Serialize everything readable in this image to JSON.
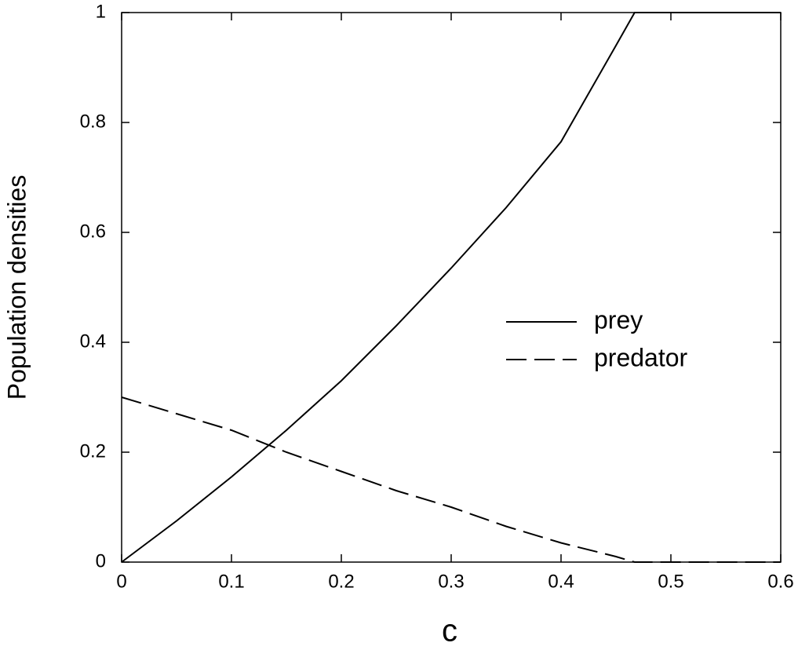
{
  "chart_data": {
    "type": "line",
    "xlabel": "c",
    "ylabel": "Population densities",
    "x": [
      0,
      0.05,
      0.1,
      0.15,
      0.2,
      0.25,
      0.3,
      0.35,
      0.4,
      0.45,
      0.467,
      0.5,
      0.55,
      0.6
    ],
    "series": [
      {
        "name": "prey",
        "color": "#000000",
        "dash": "solid",
        "values": [
          0,
          0.075,
          0.155,
          0.24,
          0.33,
          0.43,
          0.535,
          0.645,
          0.765,
          0.94,
          1,
          1,
          1,
          1
        ]
      },
      {
        "name": "predator",
        "color": "#000000",
        "dash": "dashed",
        "values": [
          0.3,
          0.27,
          0.24,
          0.2,
          0.165,
          0.13,
          0.1,
          0.065,
          0.035,
          0.01,
          0,
          0,
          0,
          0
        ]
      }
    ],
    "xlim": [
      0,
      0.6
    ],
    "xticks": [
      0,
      0.1,
      0.2,
      0.3,
      0.4,
      0.5,
      0.6
    ],
    "ylim": [
      0,
      1
    ],
    "yticks": [
      0,
      0.2,
      0.4,
      0.6,
      0.8,
      1
    ],
    "grid": false,
    "legend": "right"
  }
}
